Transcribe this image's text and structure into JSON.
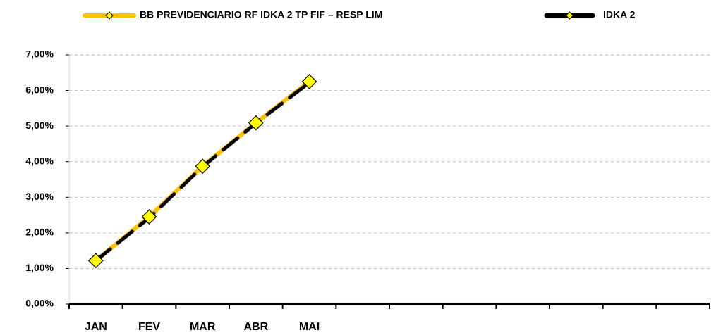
{
  "chart_data": {
    "type": "line",
    "categories": [
      "JAN",
      "FEV",
      "MAR",
      "ABR",
      "MAI",
      null,
      null,
      null,
      null,
      null,
      null,
      null
    ],
    "series": [
      {
        "name": "BB PREVIDENCIARIO RF IDKA 2 TP FIF – RESP LIM",
        "color": "#ffc000",
        "marker_color": "#ffff00",
        "values": [
          1.22,
          2.45,
          3.87,
          5.09,
          6.25,
          null,
          null,
          null,
          null,
          null,
          null,
          null
        ]
      },
      {
        "name": "IDKA 2",
        "color": "#000000",
        "marker_color": "#ffff00",
        "values": [
          1.22,
          2.42,
          3.86,
          5.08,
          6.22,
          null,
          null,
          null,
          null,
          null,
          null,
          null
        ]
      }
    ],
    "ylim": [
      0,
      7
    ],
    "yticks": [
      {
        "value": 0,
        "label": "0,00%"
      },
      {
        "value": 1,
        "label": "1,00%"
      },
      {
        "value": 2,
        "label": "2,00%"
      },
      {
        "value": 3,
        "label": "3,00%"
      },
      {
        "value": 4,
        "label": "4,00%"
      },
      {
        "value": 5,
        "label": "5,00%"
      },
      {
        "value": 6,
        "label": "6,00%"
      },
      {
        "value": 7,
        "label": "7,00%"
      }
    ],
    "grid": true,
    "legend": "top"
  }
}
